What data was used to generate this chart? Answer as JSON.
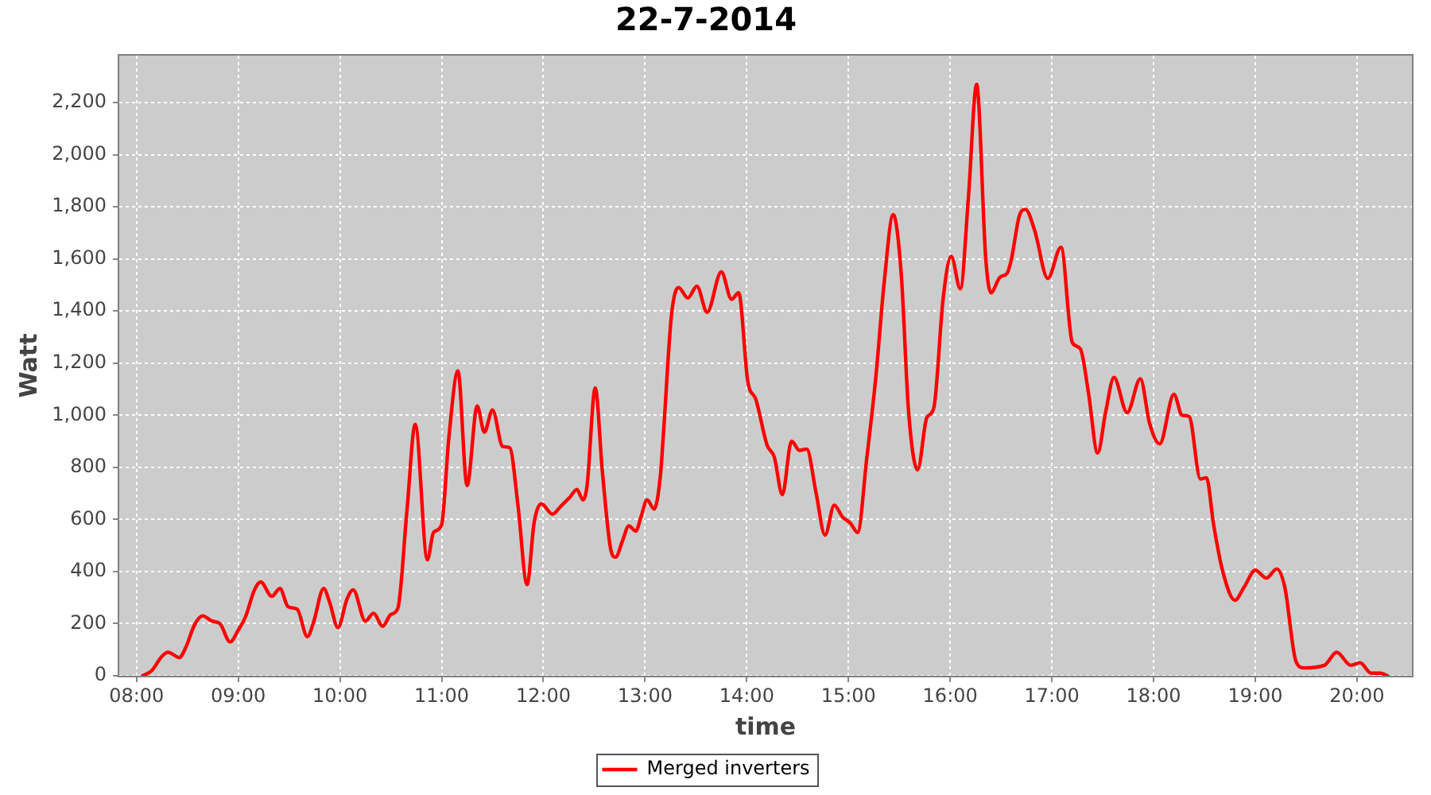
{
  "chart_data": {
    "type": "line",
    "title": "22-7-2014",
    "xlabel": "time",
    "ylabel": "Watt",
    "xlim": [
      7.83,
      20.54
    ],
    "xticks": [
      {
        "value": 8,
        "label": "08:00"
      },
      {
        "value": 9,
        "label": "09:00"
      },
      {
        "value": 10,
        "label": "10:00"
      },
      {
        "value": 11,
        "label": "11:00"
      },
      {
        "value": 12,
        "label": "12:00"
      },
      {
        "value": 13,
        "label": "13:00"
      },
      {
        "value": 14,
        "label": "14:00"
      },
      {
        "value": 15,
        "label": "15:00"
      },
      {
        "value": 16,
        "label": "16:00"
      },
      {
        "value": 17,
        "label": "17:00"
      },
      {
        "value": 18,
        "label": "18:00"
      },
      {
        "value": 19,
        "label": "19:00"
      },
      {
        "value": 20,
        "label": "20:00"
      }
    ],
    "ylim": [
      0,
      2380
    ],
    "yticks": [
      0,
      200,
      400,
      600,
      800,
      {
        "value": 1000,
        "label": "1,000"
      },
      {
        "value": 1200,
        "label": "1,200"
      },
      {
        "value": 1400,
        "label": "1,400"
      },
      {
        "value": 1600,
        "label": "1,600"
      },
      {
        "value": 1800,
        "label": "1,800"
      },
      {
        "value": 2000,
        "label": "2,000"
      },
      {
        "value": 2200,
        "label": "2,200"
      }
    ],
    "grid": true,
    "legend": "bottom",
    "x": [
      8.06,
      8.15,
      8.25,
      8.31,
      8.42,
      8.48,
      8.57,
      8.65,
      8.74,
      8.82,
      8.92,
      9.0,
      9.07,
      9.16,
      9.22,
      9.33,
      9.41,
      9.49,
      9.58,
      9.68,
      9.74,
      9.84,
      9.9,
      9.98,
      10.07,
      10.13,
      10.25,
      10.33,
      10.42,
      10.5,
      10.57,
      10.66,
      10.74,
      10.86,
      10.92,
      11.0,
      11.07,
      11.16,
      11.25,
      11.35,
      11.42,
      11.5,
      11.6,
      11.67,
      11.75,
      11.84,
      11.91,
      11.98,
      12.09,
      12.17,
      12.26,
      12.33,
      12.39,
      12.43,
      12.51,
      12.58,
      12.66,
      12.71,
      12.78,
      12.84,
      12.91,
      12.96,
      13.02,
      13.09,
      13.15,
      13.18,
      13.26,
      13.33,
      13.42,
      13.51,
      13.61,
      13.75,
      13.85,
      13.92,
      14.01,
      14.09,
      14.2,
      14.27,
      14.35,
      14.44,
      14.52,
      14.59,
      14.68,
      14.77,
      14.86,
      14.94,
      15.02,
      15.09,
      15.18,
      15.27,
      15.35,
      15.44,
      15.52,
      15.59,
      15.68,
      15.77,
      15.84,
      15.93,
      16.01,
      16.1,
      16.18,
      16.26,
      16.35,
      16.4,
      16.49,
      16.56,
      16.6,
      16.68,
      16.74,
      16.83,
      16.96,
      17.09,
      17.2,
      17.28,
      17.36,
      17.45,
      17.53,
      17.61,
      17.74,
      17.87,
      17.96,
      18.06,
      18.2,
      18.28,
      18.35,
      18.46,
      18.52,
      18.59,
      18.68,
      18.8,
      18.89,
      19.0,
      19.11,
      19.21,
      19.29,
      19.4,
      19.48,
      19.68,
      19.8,
      19.94,
      20.03,
      20.14,
      20.23,
      20.3
    ],
    "series": [
      {
        "name": "Merged inverters",
        "color": "#ff0000",
        "values": [
          0,
          20,
          75,
          90,
          70,
          105,
          195,
          230,
          210,
          200,
          130,
          175,
          225,
          330,
          360,
          305,
          335,
          265,
          255,
          150,
          205,
          335,
          280,
          185,
          295,
          330,
          210,
          240,
          190,
          235,
          260,
          640,
          965,
          445,
          550,
          580,
          910,
          1170,
          730,
          1035,
          935,
          1020,
          880,
          875,
          655,
          350,
          590,
          660,
          620,
          650,
          685,
          715,
          675,
          730,
          1105,
          785,
          490,
          455,
          520,
          575,
          555,
          610,
          675,
          640,
          765,
          925,
          1385,
          1490,
          1450,
          1495,
          1395,
          1550,
          1445,
          1470,
          1130,
          1060,
          885,
          840,
          695,
          900,
          865,
          870,
          705,
          540,
          655,
          610,
          585,
          550,
          835,
          1150,
          1505,
          1770,
          1535,
          1020,
          790,
          990,
          1030,
          1445,
          1610,
          1485,
          1840,
          2270,
          1600,
          1470,
          1530,
          1545,
          1595,
          1765,
          1790,
          1710,
          1525,
          1645,
          1280,
          1255,
          1085,
          855,
          1015,
          1145,
          1010,
          1140,
          970,
          890,
          1080,
          1000,
          995,
          755,
          760,
          580,
          400,
          290,
          340,
          405,
          375,
          410,
          340,
          55,
          30,
          40,
          90,
          40,
          50,
          10,
          10,
          0
        ]
      }
    ]
  }
}
